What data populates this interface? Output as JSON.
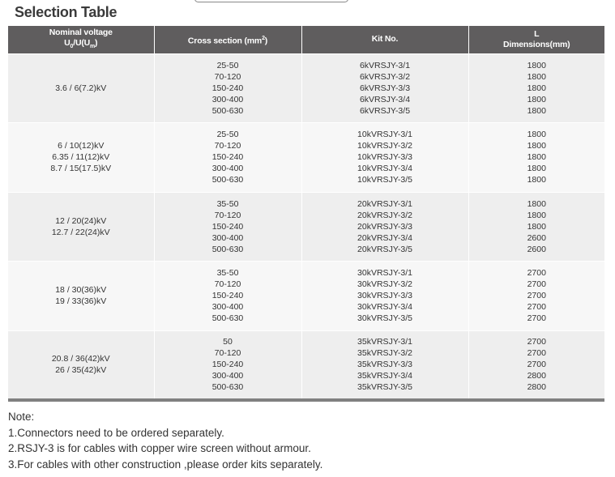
{
  "title": "Selection Table",
  "header": {
    "voltage_line1": "Nominal voltage",
    "voltage_u0": "U",
    "voltage_sub0": "0",
    "voltage_mid": "/U(U",
    "voltage_subm": "m",
    "voltage_end": ")",
    "cross_section": "Cross section (mm",
    "cross_sup": "2",
    "cross_end": ")",
    "kit_no": "Kit No.",
    "dim_line1": "L",
    "dim_line2": "Dimensions(mm)"
  },
  "groups": [
    {
      "voltages": [
        "3.6 / 6(7.2)kV"
      ],
      "sections": [
        "25-50",
        "70-120",
        "150-240",
        "300-400",
        "500-630"
      ],
      "kits": [
        "6kVRSJY-3/1",
        "6kVRSJY-3/2",
        "6kVRSJY-3/3",
        "6kVRSJY-3/4",
        "6kVRSJY-3/5"
      ],
      "dims": [
        "1800",
        "1800",
        "1800",
        "1800",
        "1800"
      ]
    },
    {
      "voltages": [
        "6 / 10(12)kV",
        "6.35 / 11(12)kV",
        "8.7 / 15(17.5)kV"
      ],
      "sections": [
        "25-50",
        "70-120",
        "150-240",
        "300-400",
        "500-630"
      ],
      "kits": [
        "10kVRSJY-3/1",
        "10kVRSJY-3/2",
        "10kVRSJY-3/3",
        "10kVRSJY-3/4",
        "10kVRSJY-3/5"
      ],
      "dims": [
        "1800",
        "1800",
        "1800",
        "1800",
        "1800"
      ]
    },
    {
      "voltages": [
        "12 / 20(24)kV",
        "12.7 / 22(24)kV"
      ],
      "sections": [
        "35-50",
        "70-120",
        "150-240",
        "300-400",
        "500-630"
      ],
      "kits": [
        "20kVRSJY-3/1",
        "20kVRSJY-3/2",
        "20kVRSJY-3/3",
        "20kVRSJY-3/4",
        "20kVRSJY-3/5"
      ],
      "dims": [
        "1800",
        "1800",
        "1800",
        "2600",
        "2600"
      ]
    },
    {
      "voltages": [
        "18 / 30(36)kV",
        "19 / 33(36)kV"
      ],
      "sections": [
        "35-50",
        "70-120",
        "150-240",
        "300-400",
        "500-630"
      ],
      "kits": [
        "30kVRSJY-3/1",
        "30kVRSJY-3/2",
        "30kVRSJY-3/3",
        "30kVRSJY-3/4",
        "30kVRSJY-3/5"
      ],
      "dims": [
        "2700",
        "2700",
        "2700",
        "2700",
        "2700"
      ]
    },
    {
      "voltages": [
        "20.8 / 36(42)kV",
        "26 / 35(42)kV"
      ],
      "sections": [
        "50",
        "70-120",
        "150-240",
        "300-400",
        "500-630"
      ],
      "kits": [
        "35kVRSJY-3/1",
        "35kVRSJY-3/2",
        "35kVRSJY-3/3",
        "35kVRSJY-3/4",
        "35kVRSJY-3/5"
      ],
      "dims": [
        "2700",
        "2700",
        "2700",
        "2800",
        "2800"
      ]
    }
  ],
  "notes": {
    "heading": "Note:",
    "items": [
      "1.Connectors need to be ordered separately.",
      "2.RSJY-3 is for cables with copper wire screen without armour.",
      "3.For cables with other construction ,please order kits separately."
    ]
  }
}
